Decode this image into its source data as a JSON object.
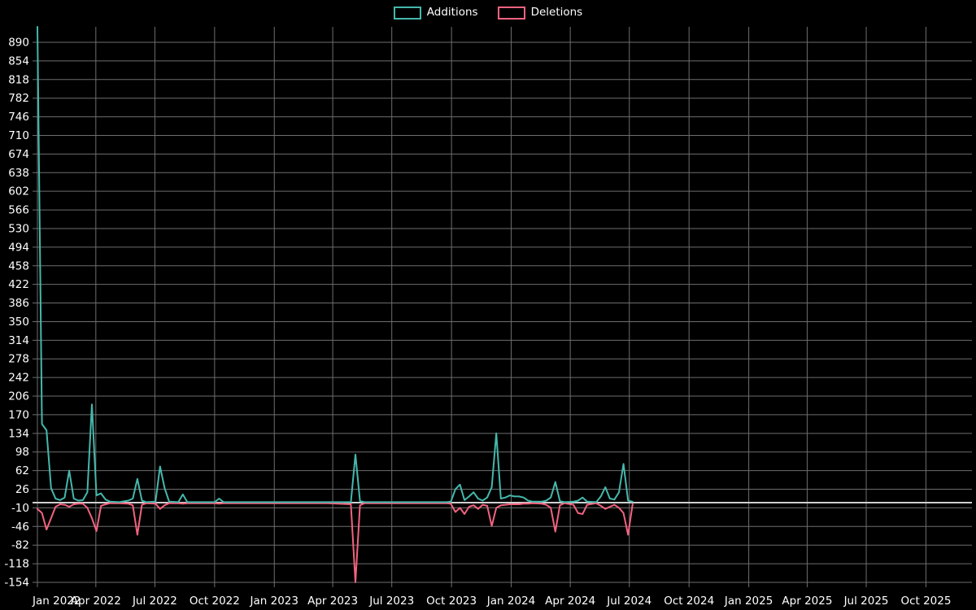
{
  "legend": {
    "position": "top-center",
    "items": [
      {
        "label": "Additions",
        "color": "#45b8ac"
      },
      {
        "label": "Deletions",
        "color": "#f2637f"
      }
    ]
  },
  "chart_data": {
    "type": "line",
    "title": "",
    "xlabel": "",
    "ylabel": "",
    "grid": true,
    "legend_position": "top-center",
    "ylim": [
      -154,
      890
    ],
    "y_ticks": [
      890,
      854,
      818,
      782,
      746,
      710,
      674,
      638,
      602,
      566,
      530,
      494,
      458,
      422,
      386,
      350,
      314,
      278,
      242,
      206,
      170,
      134,
      98,
      62,
      26,
      -10,
      -46,
      -82,
      -118,
      -154
    ],
    "x_unit": "weeks since Jan 2022",
    "x_ticks": [
      {
        "label": "Jan 2022",
        "week": 0
      },
      {
        "label": "Apr 2022",
        "week": 12.857
      },
      {
        "label": "Jul 2022",
        "week": 25.857
      },
      {
        "label": "Oct 2022",
        "week": 39.0
      },
      {
        "label": "Jan 2023",
        "week": 52.143
      },
      {
        "label": "Apr 2023",
        "week": 65.0
      },
      {
        "label": "Jul 2023",
        "week": 78.0
      },
      {
        "label": "Oct 2023",
        "week": 91.143
      },
      {
        "label": "Jan 2024",
        "week": 104.286
      },
      {
        "label": "Apr 2024",
        "week": 117.286
      },
      {
        "label": "Jul 2024",
        "week": 130.286
      },
      {
        "label": "Oct 2024",
        "week": 143.429
      },
      {
        "label": "Jan 2025",
        "week": 156.571
      },
      {
        "label": "Apr 2025",
        "week": 169.429
      },
      {
        "label": "Jul 2025",
        "week": 182.429
      },
      {
        "label": "Oct 2025",
        "week": 195.571
      }
    ],
    "style": {
      "background": "#000000",
      "grid_color": "#6e6e6e",
      "zero_line_color": "#cfcfcf",
      "text_color": "#ffffff"
    },
    "series": [
      {
        "name": "Additions",
        "color": "#45b8ac",
        "points": [
          [
            0,
            928
          ],
          [
            1,
            152
          ],
          [
            2,
            140
          ],
          [
            3,
            28
          ],
          [
            4,
            8
          ],
          [
            5,
            5
          ],
          [
            6,
            10
          ],
          [
            7,
            62
          ],
          [
            8,
            8
          ],
          [
            9,
            4
          ],
          [
            10,
            5
          ],
          [
            11,
            20
          ],
          [
            12,
            190
          ],
          [
            13,
            14
          ],
          [
            14,
            18
          ],
          [
            15,
            6
          ],
          [
            16,
            2
          ],
          [
            18,
            1
          ],
          [
            20,
            4
          ],
          [
            21,
            8
          ],
          [
            22,
            46
          ],
          [
            23,
            4
          ],
          [
            24,
            1
          ],
          [
            26,
            2
          ],
          [
            27,
            70
          ],
          [
            28,
            28
          ],
          [
            29,
            2
          ],
          [
            31,
            1
          ],
          [
            32,
            16
          ],
          [
            33,
            1
          ],
          [
            36,
            1
          ],
          [
            39,
            1
          ],
          [
            40,
            8
          ],
          [
            41,
            1
          ],
          [
            46,
            1
          ],
          [
            52,
            1
          ],
          [
            58,
            1
          ],
          [
            64,
            1
          ],
          [
            69,
            1
          ],
          [
            70,
            93
          ],
          [
            71,
            3
          ],
          [
            72,
            1
          ],
          [
            78,
            1
          ],
          [
            84,
            1
          ],
          [
            90,
            1
          ],
          [
            91,
            2
          ],
          [
            92,
            26
          ],
          [
            93,
            35
          ],
          [
            94,
            5
          ],
          [
            95,
            12
          ],
          [
            96,
            20
          ],
          [
            97,
            8
          ],
          [
            98,
            4
          ],
          [
            99,
            10
          ],
          [
            100,
            30
          ],
          [
            101,
            134
          ],
          [
            102,
            8
          ],
          [
            103,
            10
          ],
          [
            104,
            14
          ],
          [
            105,
            12
          ],
          [
            106,
            12
          ],
          [
            107,
            10
          ],
          [
            108,
            4
          ],
          [
            109,
            2
          ],
          [
            111,
            2
          ],
          [
            112,
            4
          ],
          [
            113,
            10
          ],
          [
            114,
            40
          ],
          [
            115,
            3
          ],
          [
            116,
            1
          ],
          [
            118,
            2
          ],
          [
            119,
            4
          ],
          [
            120,
            10
          ],
          [
            121,
            2
          ],
          [
            123,
            1
          ],
          [
            124,
            12
          ],
          [
            125,
            30
          ],
          [
            126,
            8
          ],
          [
            127,
            6
          ],
          [
            128,
            20
          ],
          [
            129,
            75
          ],
          [
            130,
            4
          ],
          [
            131,
            2
          ]
        ]
      },
      {
        "name": "Deletions",
        "color": "#f2637f",
        "points": [
          [
            0,
            -12
          ],
          [
            1,
            -20
          ],
          [
            2,
            -52
          ],
          [
            3,
            -30
          ],
          [
            4,
            -8
          ],
          [
            5,
            -3
          ],
          [
            6,
            -4
          ],
          [
            7,
            -8
          ],
          [
            8,
            -3
          ],
          [
            9,
            -2
          ],
          [
            10,
            -2
          ],
          [
            11,
            -10
          ],
          [
            12,
            -30
          ],
          [
            13,
            -55
          ],
          [
            14,
            -6
          ],
          [
            15,
            -3
          ],
          [
            16,
            -1
          ],
          [
            18,
            -1
          ],
          [
            20,
            -2
          ],
          [
            21,
            -5
          ],
          [
            22,
            -62
          ],
          [
            23,
            -4
          ],
          [
            24,
            -1
          ],
          [
            26,
            -2
          ],
          [
            27,
            -12
          ],
          [
            28,
            -5
          ],
          [
            29,
            -1
          ],
          [
            31,
            -1
          ],
          [
            32,
            -2
          ],
          [
            33,
            -1
          ],
          [
            36,
            -1
          ],
          [
            39,
            -1
          ],
          [
            40,
            -2
          ],
          [
            41,
            -1
          ],
          [
            46,
            -1
          ],
          [
            52,
            -1
          ],
          [
            58,
            -1
          ],
          [
            64,
            -1
          ],
          [
            69,
            -3
          ],
          [
            70,
            -154
          ],
          [
            71,
            -5
          ],
          [
            72,
            -1
          ],
          [
            78,
            -1
          ],
          [
            84,
            -1
          ],
          [
            90,
            -1
          ],
          [
            91,
            -2
          ],
          [
            92,
            -18
          ],
          [
            93,
            -10
          ],
          [
            94,
            -22
          ],
          [
            95,
            -8
          ],
          [
            96,
            -5
          ],
          [
            97,
            -12
          ],
          [
            98,
            -4
          ],
          [
            99,
            -6
          ],
          [
            100,
            -45
          ],
          [
            101,
            -10
          ],
          [
            102,
            -5
          ],
          [
            103,
            -4
          ],
          [
            104,
            -3
          ],
          [
            105,
            -3
          ],
          [
            106,
            -3
          ],
          [
            107,
            -2
          ],
          [
            108,
            -2
          ],
          [
            109,
            -1
          ],
          [
            111,
            -2
          ],
          [
            112,
            -4
          ],
          [
            113,
            -10
          ],
          [
            114,
            -56
          ],
          [
            115,
            -5
          ],
          [
            116,
            -1
          ],
          [
            118,
            -4
          ],
          [
            119,
            -20
          ],
          [
            120,
            -22
          ],
          [
            121,
            -4
          ],
          [
            123,
            -1
          ],
          [
            124,
            -6
          ],
          [
            125,
            -12
          ],
          [
            126,
            -8
          ],
          [
            127,
            -4
          ],
          [
            128,
            -10
          ],
          [
            129,
            -20
          ],
          [
            130,
            -62
          ],
          [
            131,
            -3
          ]
        ]
      }
    ]
  }
}
